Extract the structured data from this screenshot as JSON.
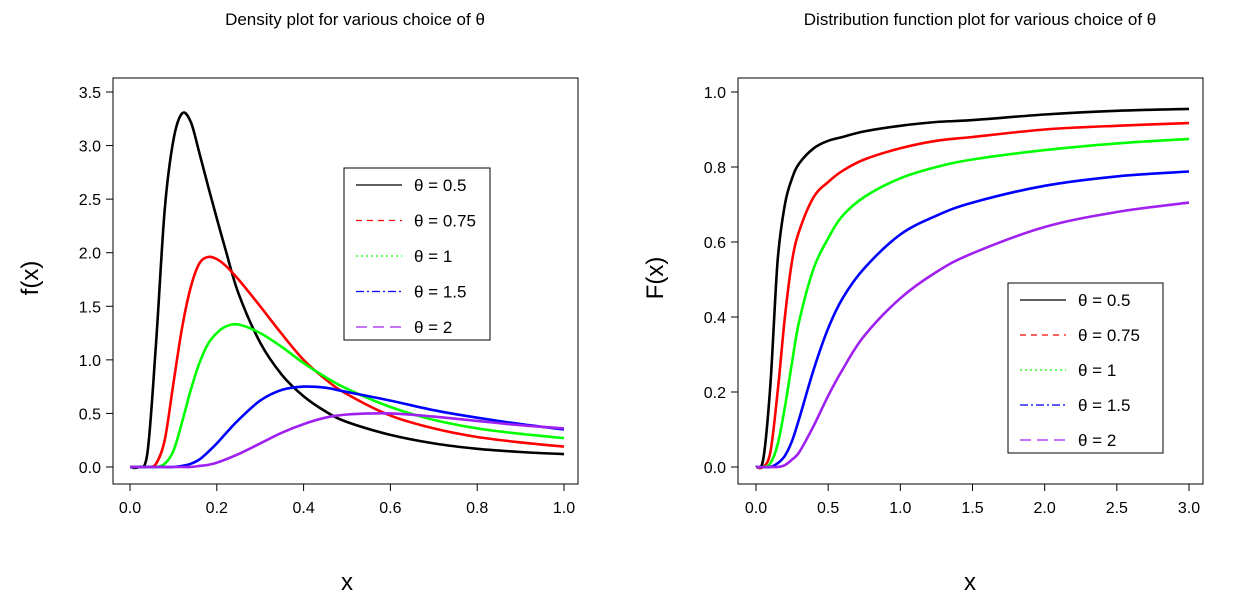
{
  "chart_data": [
    {
      "type": "line",
      "title": "Density plot for various choice of  θ",
      "xlabel": "x",
      "ylabel": "f(x)",
      "xlim": [
        0.0,
        1.0
      ],
      "ylim": [
        0.0,
        3.5
      ],
      "xticks": [
        "0.0",
        "0.2",
        "0.4",
        "0.6",
        "0.8",
        "1.0"
      ],
      "yticks": [
        "0.0",
        "0.5",
        "1.0",
        "1.5",
        "2.0",
        "2.5",
        "3.0",
        "3.5"
      ],
      "legend_position": "right",
      "x": [
        0.0,
        0.02,
        0.04,
        0.06,
        0.08,
        0.1,
        0.12,
        0.14,
        0.16,
        0.18,
        0.2,
        0.22,
        0.25,
        0.3,
        0.35,
        0.4,
        0.45,
        0.5,
        0.6,
        0.7,
        0.8,
        0.9,
        1.0
      ],
      "series": [
        {
          "name": "θ = 0.5",
          "color": "#000000",
          "values": [
            0.0,
            0.0,
            0.13,
            1.15,
            2.4,
            3.05,
            3.3,
            3.22,
            2.93,
            2.62,
            2.32,
            2.03,
            1.62,
            1.16,
            0.86,
            0.66,
            0.52,
            0.42,
            0.3,
            0.22,
            0.17,
            0.14,
            0.12
          ]
        },
        {
          "name": "θ = 0.75",
          "color": "#ff0000",
          "values": [
            0.0,
            0.0,
            0.0,
            0.03,
            0.25,
            0.78,
            1.3,
            1.68,
            1.9,
            1.96,
            1.94,
            1.88,
            1.75,
            1.5,
            1.24,
            1.0,
            0.82,
            0.68,
            0.48,
            0.36,
            0.28,
            0.23,
            0.19
          ]
        },
        {
          "name": "θ = 1",
          "color": "#00ff00",
          "values": [
            0.0,
            0.0,
            0.0,
            0.0,
            0.03,
            0.15,
            0.42,
            0.72,
            0.97,
            1.15,
            1.25,
            1.31,
            1.33,
            1.25,
            1.12,
            0.97,
            0.84,
            0.73,
            0.56,
            0.44,
            0.36,
            0.31,
            0.27
          ]
        },
        {
          "name": "θ = 1.5",
          "color": "#0000ff",
          "values": [
            0.0,
            0.0,
            0.0,
            0.0,
            0.0,
            0.0,
            0.01,
            0.03,
            0.07,
            0.14,
            0.22,
            0.31,
            0.44,
            0.62,
            0.72,
            0.75,
            0.74,
            0.7,
            0.62,
            0.53,
            0.46,
            0.4,
            0.35
          ]
        },
        {
          "name": "θ = 2",
          "color": "#a020f0",
          "values": [
            0.0,
            0.0,
            0.0,
            0.0,
            0.0,
            0.0,
            0.0,
            0.0,
            0.01,
            0.02,
            0.04,
            0.07,
            0.12,
            0.22,
            0.32,
            0.4,
            0.46,
            0.49,
            0.5,
            0.47,
            0.43,
            0.39,
            0.36
          ]
        }
      ]
    },
    {
      "type": "line",
      "title": "Distribution function plot for various choice of  θ",
      "xlabel": "x",
      "ylabel": "F(x)",
      "xlim": [
        0.0,
        3.0
      ],
      "ylim": [
        0.0,
        1.0
      ],
      "xticks": [
        "0.0",
        "0.5",
        "1.0",
        "1.5",
        "2.0",
        "2.5",
        "3.0"
      ],
      "yticks": [
        "0.0",
        "0.2",
        "0.4",
        "0.6",
        "0.8",
        "1.0"
      ],
      "legend_position": "bottom-right",
      "x": [
        0.0,
        0.05,
        0.1,
        0.15,
        0.2,
        0.25,
        0.3,
        0.4,
        0.5,
        0.6,
        0.75,
        1.0,
        1.25,
        1.5,
        2.0,
        2.5,
        3.0
      ],
      "series": [
        {
          "name": "θ = 0.5",
          "color": "#000000",
          "values": [
            0.0,
            0.02,
            0.22,
            0.55,
            0.7,
            0.77,
            0.81,
            0.85,
            0.87,
            0.88,
            0.895,
            0.91,
            0.92,
            0.925,
            0.94,
            0.95,
            0.955
          ]
        },
        {
          "name": "θ = 0.75",
          "color": "#ff0000",
          "values": [
            0.0,
            0.0,
            0.04,
            0.2,
            0.4,
            0.55,
            0.63,
            0.72,
            0.76,
            0.79,
            0.82,
            0.85,
            0.87,
            0.88,
            0.9,
            0.91,
            0.917
          ]
        },
        {
          "name": "θ = 1",
          "color": "#00ff00",
          "values": [
            0.0,
            0.0,
            0.01,
            0.06,
            0.16,
            0.28,
            0.39,
            0.53,
            0.61,
            0.67,
            0.72,
            0.77,
            0.8,
            0.82,
            0.845,
            0.863,
            0.875
          ]
        },
        {
          "name": "θ = 1.5",
          "color": "#0000ff",
          "values": [
            0.0,
            0.0,
            0.0,
            0.01,
            0.03,
            0.07,
            0.13,
            0.26,
            0.37,
            0.45,
            0.53,
            0.62,
            0.67,
            0.705,
            0.75,
            0.775,
            0.788
          ]
        },
        {
          "name": "θ = 2",
          "color": "#a020f0",
          "values": [
            0.0,
            0.0,
            0.0,
            0.0,
            0.005,
            0.02,
            0.04,
            0.11,
            0.19,
            0.26,
            0.35,
            0.45,
            0.52,
            0.57,
            0.64,
            0.68,
            0.705
          ]
        }
      ]
    }
  ]
}
